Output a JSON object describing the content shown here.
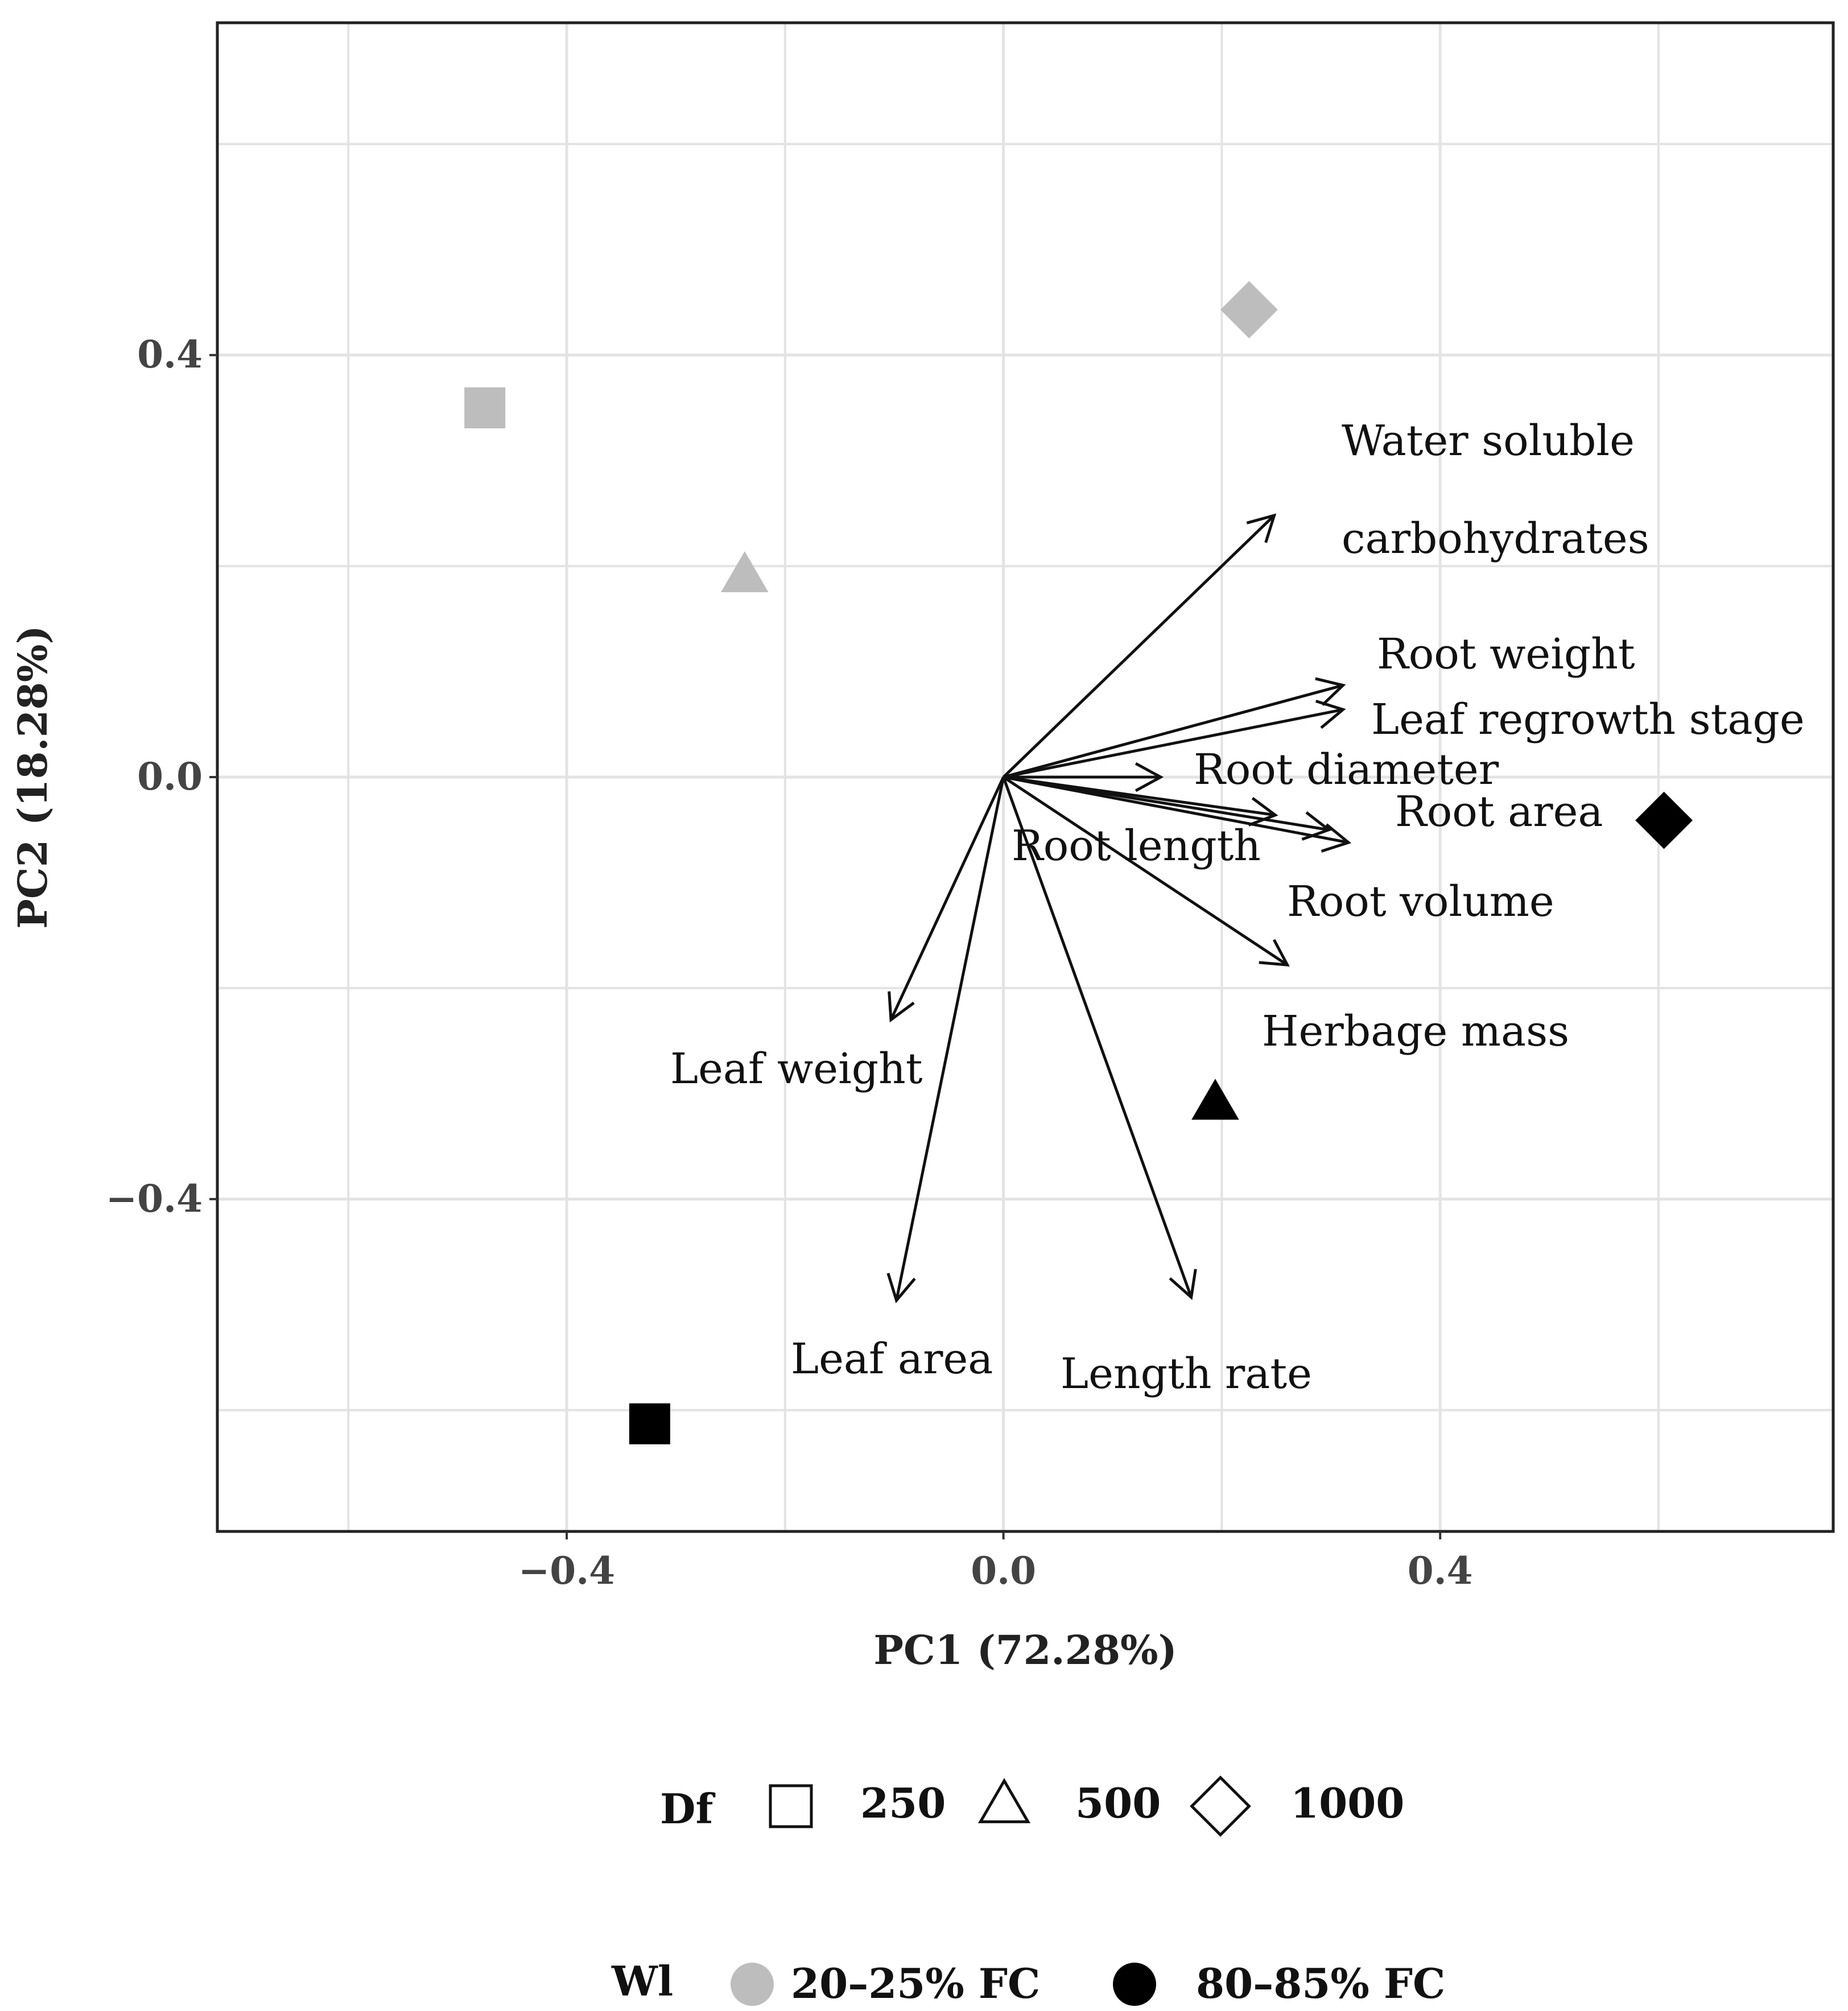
{
  "chart_data": {
    "type": "scatter",
    "subtype": "pca-biplot",
    "xlabel": "PC1 (72.28%)",
    "ylabel": "PC2 (18.28%)",
    "xlim": [
      -0.72,
      0.76
    ],
    "ylim": [
      -0.715,
      0.715
    ],
    "xticks": [
      -0.4,
      0.0,
      0.4
    ],
    "xtick_labels": [
      "−0.4",
      "0.0",
      "0.4"
    ],
    "yticks": [
      -0.4,
      0.0,
      0.4
    ],
    "ytick_labels": [
      "−0.4",
      "0.0",
      "0.4"
    ],
    "grid": true,
    "points": [
      {
        "df": "250",
        "wl": "20–25% FC",
        "shape": "square",
        "x": -0.475,
        "y": 0.35
      },
      {
        "df": "500",
        "wl": "20–25% FC",
        "shape": "triangle",
        "x": -0.237,
        "y": 0.19
      },
      {
        "df": "1000",
        "wl": "20–25% FC",
        "shape": "diamond",
        "x": 0.225,
        "y": 0.443
      },
      {
        "df": "250",
        "wl": "80–85% FC",
        "shape": "square",
        "x": -0.324,
        "y": -0.613
      },
      {
        "df": "500",
        "wl": "80–85% FC",
        "shape": "triangle",
        "x": 0.194,
        "y": -0.31
      },
      {
        "df": "1000",
        "wl": "80–85% FC",
        "shape": "diamond",
        "x": 0.605,
        "y": -0.041
      }
    ],
    "loadings": [
      {
        "name": "wsc",
        "label_lines": [
          "Water soluble",
          "carbohydrates"
        ],
        "x": 0.248,
        "y": 0.248
      },
      {
        "name": "root-weight",
        "label_lines": [
          "Root weight"
        ],
        "x": 0.311,
        "y": 0.087
      },
      {
        "name": "leaf-regrowth",
        "label_lines": [
          "Leaf regrowth stage"
        ],
        "x": 0.311,
        "y": 0.064
      },
      {
        "name": "root-diameter",
        "label_lines": [
          "Root diameter"
        ],
        "x": 0.144,
        "y": 0.0
      },
      {
        "name": "root-area",
        "label_lines": [
          "Root area"
        ],
        "x": 0.298,
        "y": -0.05
      },
      {
        "name": "root-length",
        "label_lines": [
          "Root length"
        ],
        "x": 0.249,
        "y": -0.036
      },
      {
        "name": "root-volume",
        "label_lines": [
          "Root volume"
        ],
        "x": 0.316,
        "y": -0.062
      },
      {
        "name": "herbage-mass",
        "label_lines": [
          "Herbage mass"
        ],
        "x": 0.26,
        "y": -0.178
      },
      {
        "name": "leaf-weight",
        "label_lines": [
          "Leaf weight"
        ],
        "x": -0.103,
        "y": -0.23
      },
      {
        "name": "leaf-area",
        "label_lines": [
          "Leaf area"
        ],
        "x": -0.098,
        "y": -0.496
      },
      {
        "name": "length-rate",
        "label_lines": [
          "Length rate"
        ],
        "x": 0.172,
        "y": -0.493
      }
    ],
    "legends": {
      "df": {
        "title": "Df",
        "entries": [
          {
            "label": "250",
            "shape": "square"
          },
          {
            "label": "500",
            "shape": "triangle"
          },
          {
            "label": "1000",
            "shape": "diamond"
          }
        ]
      },
      "wl": {
        "title": "Wl",
        "entries": [
          {
            "label": "20–25% FC",
            "color": "#bdbdbd"
          },
          {
            "label": "80–85% FC",
            "color": "#000000"
          }
        ]
      },
      "placement": "bottom"
    },
    "colors": {
      "low_water": "#bdbdbd",
      "high_water": "#000000",
      "grid": "#e3e3e3",
      "frame": "#222222",
      "arrow": "#111111"
    }
  }
}
